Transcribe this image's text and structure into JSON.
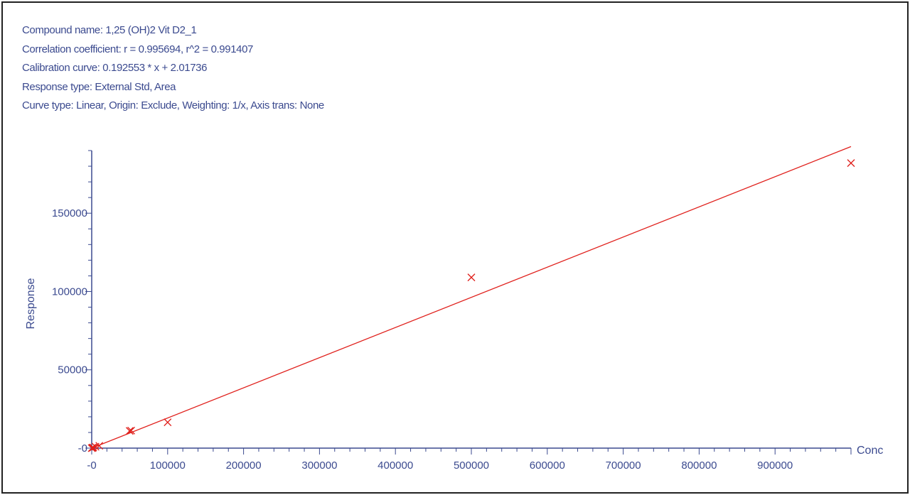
{
  "header": {
    "compound": "Compound name: 1,25 (OH)2 Vit D2_1",
    "correlation": "Correlation coefficient: r = 0.995694, r^2 = 0.991407",
    "calibration": "Calibration curve: 0.192553 * x + 2.01736",
    "response_type": "Response type: External Std, Area",
    "curve_type": "Curve type: Linear, Origin: Exclude, Weighting: 1/x, Axis trans: None"
  },
  "colors": {
    "axis": "#3b4a8f",
    "series": "#e0201c",
    "text": "#3b4a8f"
  },
  "chart_data": {
    "type": "scatter",
    "title": "",
    "xlabel": "Conc",
    "ylabel": "Response",
    "xlim": [
      0,
      1000000
    ],
    "ylim": [
      0,
      190000
    ],
    "x_ticks": [
      0,
      100000,
      200000,
      300000,
      400000,
      500000,
      600000,
      700000,
      800000,
      900000
    ],
    "x_tick_labels": [
      "-0",
      "100000",
      "200000",
      "300000",
      "400000",
      "500000",
      "600000",
      "700000",
      "800000",
      "900000"
    ],
    "y_ticks": [
      0,
      50000,
      100000,
      150000
    ],
    "y_tick_labels": [
      "-0",
      "50000",
      "100000",
      "150000"
    ],
    "series": [
      {
        "marker": "x",
        "x": [
          0,
          1000,
          2000,
          5000,
          10000,
          50000,
          52000,
          100000,
          500000,
          1000000
        ],
        "y": [
          0,
          200,
          400,
          900,
          1500,
          11000,
          11200,
          16500,
          109000,
          182000
        ]
      }
    ],
    "fit_line": {
      "slope": 0.192553,
      "intercept": 2.01736,
      "x_range": [
        0,
        1000000
      ]
    },
    "grid": false,
    "legend": "none"
  }
}
